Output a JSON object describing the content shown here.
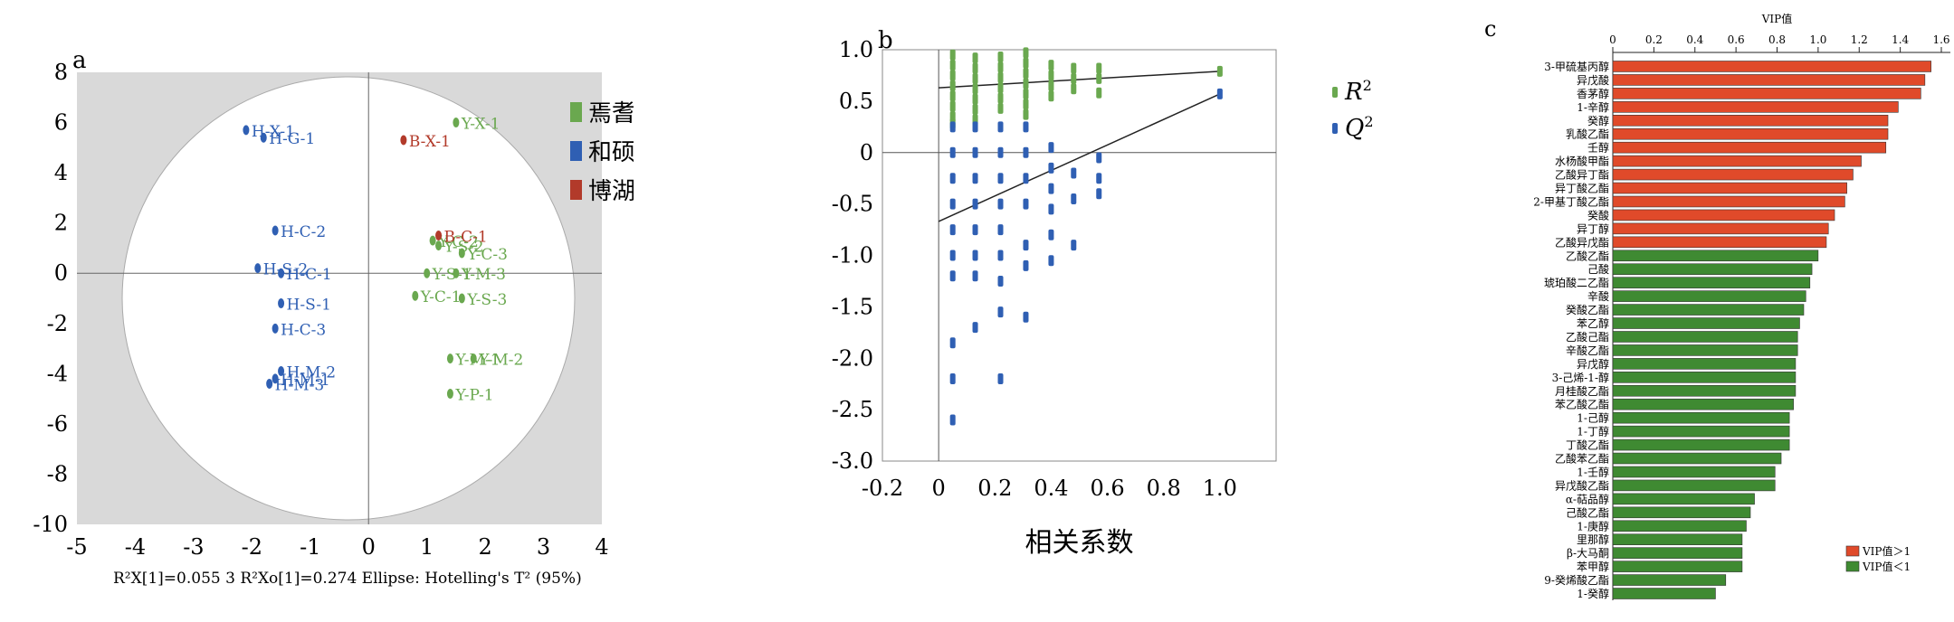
{
  "colors": {
    "green": "#6aa84f",
    "green_bar": "#3f8a32",
    "blue": "#2f5fb3",
    "red": "#b23a2a",
    "red_bar": "#e04a2a",
    "plot_bg": "#d9d9d9",
    "ellipse": "#ffffff"
  },
  "chart_data": [
    {
      "type": "scatter",
      "panel_label": "a",
      "xlim": [
        -5,
        4
      ],
      "ylim": [
        -10,
        8
      ],
      "xticks": [
        "-5",
        "-4",
        "-3",
        "-2",
        "-1",
        "0",
        "1",
        "2",
        "3",
        "4"
      ],
      "yticks": [
        "8",
        "6",
        "4",
        "2",
        "0",
        "-2",
        "-4",
        "-6",
        "-8",
        "-10"
      ],
      "legend_position": "right",
      "footer": "R²X[1]=0.055 3  R²Xo[1]=0.274  Ellipse: Hotelling's T² (95%)",
      "series": [
        {
          "name": "焉耆",
          "color_key": "green",
          "points": [
            {
              "label": "Y-X-1",
              "x": 1.5,
              "y": 6.0
            },
            {
              "label": "Y-C-2",
              "x": 1.1,
              "y": 1.3
            },
            {
              "label": "Y-S-2",
              "x": 1.2,
              "y": 1.1
            },
            {
              "label": "Y-C-3",
              "x": 1.6,
              "y": 0.8
            },
            {
              "label": "Y-S-1",
              "x": 1.0,
              "y": 0.0
            },
            {
              "label": "Y-M-3",
              "x": 1.5,
              "y": 0.0
            },
            {
              "label": "Y-C-1",
              "x": 0.8,
              "y": -0.9
            },
            {
              "label": "Y-S-3",
              "x": 1.6,
              "y": -1.0
            },
            {
              "label": "Y-M-1",
              "x": 1.4,
              "y": -3.4
            },
            {
              "label": "Y-M-2",
              "x": 1.8,
              "y": -3.4
            },
            {
              "label": "Y-P-1",
              "x": 1.4,
              "y": -4.8
            }
          ]
        },
        {
          "name": "和硕",
          "color_key": "blue",
          "points": [
            {
              "label": "H-X-1",
              "x": -2.1,
              "y": 5.7
            },
            {
              "label": "H-G-1",
              "x": -1.8,
              "y": 5.4
            },
            {
              "label": "H-C-2",
              "x": -1.6,
              "y": 1.7
            },
            {
              "label": "H-S-2",
              "x": -1.9,
              "y": 0.2
            },
            {
              "label": "H-C-1",
              "x": -1.5,
              "y": 0.0
            },
            {
              "label": "H-S-1",
              "x": -1.5,
              "y": -1.2
            },
            {
              "label": "H-C-3",
              "x": -1.6,
              "y": -2.2
            },
            {
              "label": "H-M-2",
              "x": -1.5,
              "y": -3.9
            },
            {
              "label": "H-M-3",
              "x": -1.7,
              "y": -4.4
            },
            {
              "label": "H-M-1",
              "x": -1.6,
              "y": -4.2
            }
          ]
        },
        {
          "name": "博湖",
          "color_key": "red",
          "points": [
            {
              "label": "B-X-1",
              "x": 0.6,
              "y": 5.3
            },
            {
              "label": "B-C-1",
              "x": 1.2,
              "y": 1.5
            }
          ]
        }
      ]
    },
    {
      "type": "scatter",
      "panel_label": "b",
      "xlabel": "相关系数",
      "xlim": [
        -0.2,
        1.2
      ],
      "ylim": [
        -3.0,
        1.0
      ],
      "xticks": [
        "-0.2",
        "0",
        "0.2",
        "0.4",
        "0.6",
        "0.8",
        "1.0"
      ],
      "yticks": [
        "1.0",
        "0.5",
        "0",
        "-0.5",
        "-1.0",
        "-1.5",
        "-2.0",
        "-2.5",
        "-3.0"
      ],
      "legend_position": "top-right",
      "regression_lines": [
        {
          "series": "R²",
          "x": [
            0,
            1.0
          ],
          "y": [
            0.63,
            0.79
          ]
        },
        {
          "series": "Q²",
          "x": [
            0,
            1.0
          ],
          "y": [
            -0.67,
            0.57
          ]
        }
      ],
      "series": [
        {
          "name": "R",
          "sup": "2",
          "color_key": "green",
          "points": [
            {
              "x": 0.05,
              "y": 0.95
            },
            {
              "x": 0.05,
              "y": 0.85
            },
            {
              "x": 0.05,
              "y": 0.75
            },
            {
              "x": 0.05,
              "y": 0.65
            },
            {
              "x": 0.05,
              "y": 0.55
            },
            {
              "x": 0.05,
              "y": 0.45
            },
            {
              "x": 0.05,
              "y": 0.35
            },
            {
              "x": 0.05,
              "y": 0.28
            },
            {
              "x": 0.13,
              "y": 0.92
            },
            {
              "x": 0.13,
              "y": 0.82
            },
            {
              "x": 0.13,
              "y": 0.72
            },
            {
              "x": 0.13,
              "y": 0.62
            },
            {
              "x": 0.13,
              "y": 0.52
            },
            {
              "x": 0.13,
              "y": 0.42
            },
            {
              "x": 0.13,
              "y": 0.32
            },
            {
              "x": 0.22,
              "y": 0.93
            },
            {
              "x": 0.22,
              "y": 0.83
            },
            {
              "x": 0.22,
              "y": 0.73
            },
            {
              "x": 0.22,
              "y": 0.63
            },
            {
              "x": 0.22,
              "y": 0.53
            },
            {
              "x": 0.22,
              "y": 0.43
            },
            {
              "x": 0.31,
              "y": 0.97
            },
            {
              "x": 0.31,
              "y": 0.87
            },
            {
              "x": 0.31,
              "y": 0.77
            },
            {
              "x": 0.31,
              "y": 0.67
            },
            {
              "x": 0.31,
              "y": 0.57
            },
            {
              "x": 0.31,
              "y": 0.47
            },
            {
              "x": 0.31,
              "y": 0.37
            },
            {
              "x": 0.4,
              "y": 0.85
            },
            {
              "x": 0.4,
              "y": 0.75
            },
            {
              "x": 0.4,
              "y": 0.65
            },
            {
              "x": 0.4,
              "y": 0.55
            },
            {
              "x": 0.48,
              "y": 0.82
            },
            {
              "x": 0.48,
              "y": 0.72
            },
            {
              "x": 0.48,
              "y": 0.62
            },
            {
              "x": 0.57,
              "y": 0.82
            },
            {
              "x": 0.57,
              "y": 0.72
            },
            {
              "x": 0.57,
              "y": 0.58
            },
            {
              "x": 1.0,
              "y": 0.79
            }
          ]
        },
        {
          "name": "Q",
          "sup": "2",
          "color_key": "blue",
          "points": [
            {
              "x": 0.05,
              "y": 0.25
            },
            {
              "x": 0.05,
              "y": 0.0
            },
            {
              "x": 0.05,
              "y": -0.25
            },
            {
              "x": 0.05,
              "y": -0.5
            },
            {
              "x": 0.05,
              "y": -0.75
            },
            {
              "x": 0.05,
              "y": -1.0
            },
            {
              "x": 0.05,
              "y": -1.2
            },
            {
              "x": 0.05,
              "y": -1.85
            },
            {
              "x": 0.05,
              "y": -2.2
            },
            {
              "x": 0.05,
              "y": -2.6
            },
            {
              "x": 0.13,
              "y": 0.25
            },
            {
              "x": 0.13,
              "y": 0.0
            },
            {
              "x": 0.13,
              "y": -0.25
            },
            {
              "x": 0.13,
              "y": -0.5
            },
            {
              "x": 0.13,
              "y": -0.75
            },
            {
              "x": 0.13,
              "y": -1.0
            },
            {
              "x": 0.13,
              "y": -1.2
            },
            {
              "x": 0.13,
              "y": -1.7
            },
            {
              "x": 0.22,
              "y": 0.25
            },
            {
              "x": 0.22,
              "y": 0.0
            },
            {
              "x": 0.22,
              "y": -0.25
            },
            {
              "x": 0.22,
              "y": -0.5
            },
            {
              "x": 0.22,
              "y": -0.75
            },
            {
              "x": 0.22,
              "y": -1.0
            },
            {
              "x": 0.22,
              "y": -1.25
            },
            {
              "x": 0.22,
              "y": -1.55
            },
            {
              "x": 0.22,
              "y": -2.2
            },
            {
              "x": 0.31,
              "y": 0.25
            },
            {
              "x": 0.31,
              "y": 0.0
            },
            {
              "x": 0.31,
              "y": -0.25
            },
            {
              "x": 0.31,
              "y": -0.5
            },
            {
              "x": 0.31,
              "y": -0.9
            },
            {
              "x": 0.31,
              "y": -1.1
            },
            {
              "x": 0.31,
              "y": -1.6
            },
            {
              "x": 0.4,
              "y": 0.05
            },
            {
              "x": 0.4,
              "y": -0.15
            },
            {
              "x": 0.4,
              "y": -0.35
            },
            {
              "x": 0.4,
              "y": -0.55
            },
            {
              "x": 0.4,
              "y": -0.8
            },
            {
              "x": 0.4,
              "y": -1.05
            },
            {
              "x": 0.48,
              "y": -0.2
            },
            {
              "x": 0.48,
              "y": -0.45
            },
            {
              "x": 0.48,
              "y": -0.9
            },
            {
              "x": 0.57,
              "y": -0.05
            },
            {
              "x": 0.57,
              "y": -0.25
            },
            {
              "x": 0.57,
              "y": -0.4
            },
            {
              "x": 1.0,
              "y": 0.57
            }
          ]
        }
      ]
    },
    {
      "type": "bar",
      "orientation": "horizontal",
      "panel_label": "c",
      "xlabel": "VIP值",
      "xlim": [
        0,
        1.6
      ],
      "xticks": [
        "0",
        "0.2",
        "0.4",
        "0.6",
        "0.8",
        "1.0",
        "1.2",
        "1.4",
        "1.6"
      ],
      "legend_position": "bottom-right",
      "legend": [
        {
          "label": "VIP值＞1",
          "color_key": "red_bar"
        },
        {
          "label": "VIP值＜1",
          "color_key": "green_bar"
        }
      ],
      "categories": [
        "3-甲硫基丙醇",
        "异戊酸",
        "香茅醇",
        "1-辛醇",
        "癸醇",
        "乳酸乙酯",
        "壬醇",
        "水杨酸甲酯",
        "乙酸异丁酯",
        "异丁酸乙酯",
        "2-甲基丁酸乙酯",
        "癸酸",
        "异丁醇",
        "乙酸异戊酯",
        "乙酸乙酯",
        "己酸",
        "琥珀酸二乙酯",
        "辛酸",
        "癸酸乙酯",
        "苯乙醇",
        "乙酸己酯",
        "辛酸乙酯",
        "异戊醇",
        "3-己烯-1-醇",
        "月桂酸乙酯",
        "苯乙酸乙酯",
        "1-己醇",
        "1-丁醇",
        "丁酸乙酯",
        "乙酸苯乙酯",
        "1-壬醇",
        "异戊酸乙酯",
        "α-萜品醇",
        "己酸乙酯",
        "1-庚醇",
        "里那醇",
        "β-大马酮",
        "苯甲醇",
        "9-癸烯酸乙酯",
        "1-癸醇"
      ],
      "values": [
        1.55,
        1.52,
        1.5,
        1.39,
        1.34,
        1.34,
        1.33,
        1.21,
        1.17,
        1.14,
        1.13,
        1.08,
        1.05,
        1.04,
        1.0,
        0.97,
        0.96,
        0.94,
        0.93,
        0.91,
        0.9,
        0.9,
        0.89,
        0.89,
        0.89,
        0.88,
        0.86,
        0.86,
        0.86,
        0.82,
        0.79,
        0.79,
        0.69,
        0.67,
        0.65,
        0.63,
        0.63,
        0.63,
        0.55,
        0.5
      ]
    }
  ]
}
